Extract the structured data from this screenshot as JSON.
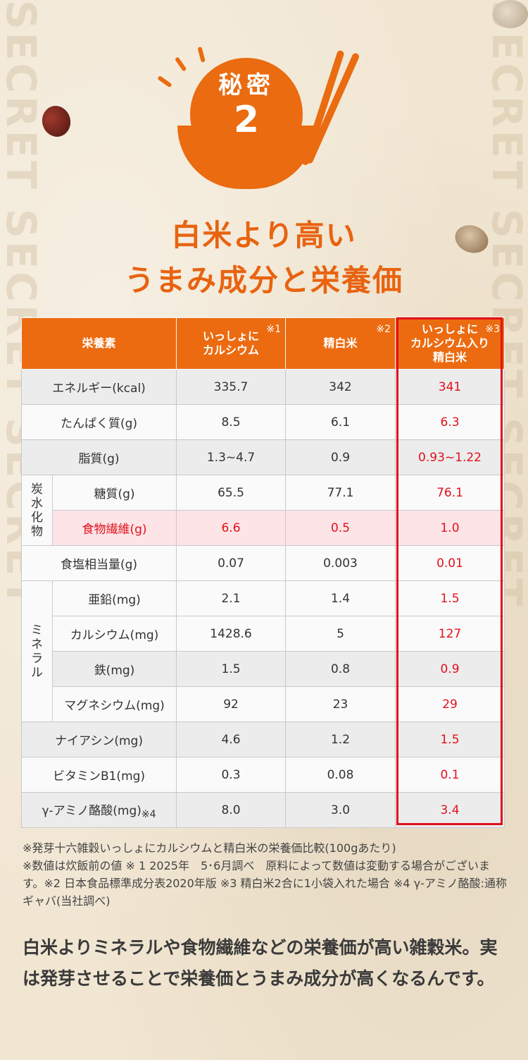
{
  "badge": {
    "label": "秘密",
    "number": "2"
  },
  "headline": {
    "line1": "白米より高い",
    "line2": "うまみ成分と栄養価"
  },
  "side_text": "SECRET SECRET SECRET",
  "table": {
    "header": {
      "col0": "栄養素",
      "col1": "いっしょに\nカルシウム",
      "col1_note": "※1",
      "col2": "精白米",
      "col2_note": "※2",
      "col3": "いっしょに\nカルシウム入り\n精白米",
      "col3_note": "※3"
    },
    "groups": {
      "carb": "炭\n水\n化\n物",
      "mineral": "ミ\nネ\nラ\nル"
    },
    "rows": [
      {
        "name": "エネルギー(kcal)",
        "v1": "335.7",
        "v2": "342",
        "v3": "341"
      },
      {
        "name": "たんぱく質(g)",
        "v1": "8.5",
        "v2": "6.1",
        "v3": "6.3"
      },
      {
        "name": "脂質(g)",
        "v1": "1.3~4.7",
        "v2": "0.9",
        "v3": "0.93~1.22"
      },
      {
        "name": "糖質(g)",
        "v1": "65.5",
        "v2": "77.1",
        "v3": "76.1"
      },
      {
        "name": "食物繊維(g)",
        "v1": "6.6",
        "v2": "0.5",
        "v3": "1.0"
      },
      {
        "name": "食塩相当量(g)",
        "v1": "0.07",
        "v2": "0.003",
        "v3": "0.01"
      },
      {
        "name": "亜鉛(mg)",
        "v1": "2.1",
        "v2": "1.4",
        "v3": "1.5"
      },
      {
        "name": "カルシウム(mg)",
        "v1": "1428.6",
        "v2": "5",
        "v3": "127"
      },
      {
        "name": "鉄(mg)",
        "v1": "1.5",
        "v2": "0.8",
        "v3": "0.9"
      },
      {
        "name": "マグネシウム(mg)",
        "v1": "92",
        "v2": "23",
        "v3": "29"
      },
      {
        "name": "ナイアシン(mg)",
        "v1": "4.6",
        "v2": "1.2",
        "v3": "1.5"
      },
      {
        "name": "ビタミンB1(mg)",
        "v1": "0.3",
        "v2": "0.08",
        "v3": "0.1"
      },
      {
        "name": "γ-アミノ酪酸(mg)",
        "name_note": "※4",
        "v1": "8.0",
        "v2": "3.0",
        "v3": "3.4"
      }
    ]
  },
  "footnotes": [
    "※発芽十六雑穀いっしょにカルシウムと精白米の栄養価比較(100gあたり)",
    "※数値は炊飯前の値 ※ 1 2025年　5･6月調べ　原料によって数値は変動する場合がございます。※2 日本食品標準成分表2020年版 ※3 精白米2合に1小袋入れた場合 ※4 γ-アミノ酪酸:通称ギャバ(当社調べ)"
  ],
  "body": "白米よりミネラルや食物繊維などの栄養価が高い雑穀米。実は発芽させることで栄養価とうまみ成分が高くなるんです。",
  "colors": {
    "accent": "#ec6b10",
    "red": "#e0111d",
    "pink": "#fde4e6"
  }
}
